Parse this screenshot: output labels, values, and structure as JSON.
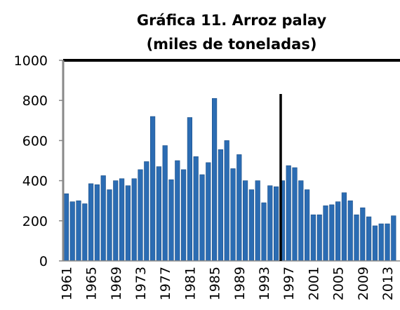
{
  "chart_data": {
    "type": "bar",
    "title": [
      "Gráfica 11. Arroz palay",
      "(miles de toneladas)"
    ],
    "categories": [
      "1961",
      null,
      null,
      null,
      "1965",
      null,
      null,
      null,
      "1969",
      null,
      null,
      null,
      "1973",
      null,
      null,
      null,
      "1977",
      null,
      null,
      null,
      "1981",
      null,
      null,
      null,
      "1985",
      null,
      null,
      null,
      "1989",
      null,
      null,
      null,
      "1993",
      null,
      null,
      null,
      "1997",
      null,
      null,
      null,
      "2001",
      null,
      null,
      null,
      "2005",
      null,
      null,
      null,
      "2009",
      null,
      null,
      null,
      "2013",
      null
    ],
    "values": [
      335,
      295,
      300,
      285,
      385,
      380,
      425,
      355,
      400,
      410,
      375,
      410,
      455,
      495,
      720,
      470,
      575,
      405,
      500,
      455,
      715,
      520,
      430,
      490,
      810,
      555,
      600,
      460,
      530,
      400,
      355,
      400,
      290,
      375,
      370,
      400,
      475,
      465,
      400,
      355,
      230,
      230,
      275,
      280,
      295,
      340,
      300,
      230,
      265,
      220,
      175,
      185,
      185,
      225
    ],
    "color": "#2b6cb3",
    "ylim": [
      0,
      1000
    ],
    "yticks": [
      0,
      200,
      400,
      600,
      800,
      1000
    ],
    "grid": false
  }
}
